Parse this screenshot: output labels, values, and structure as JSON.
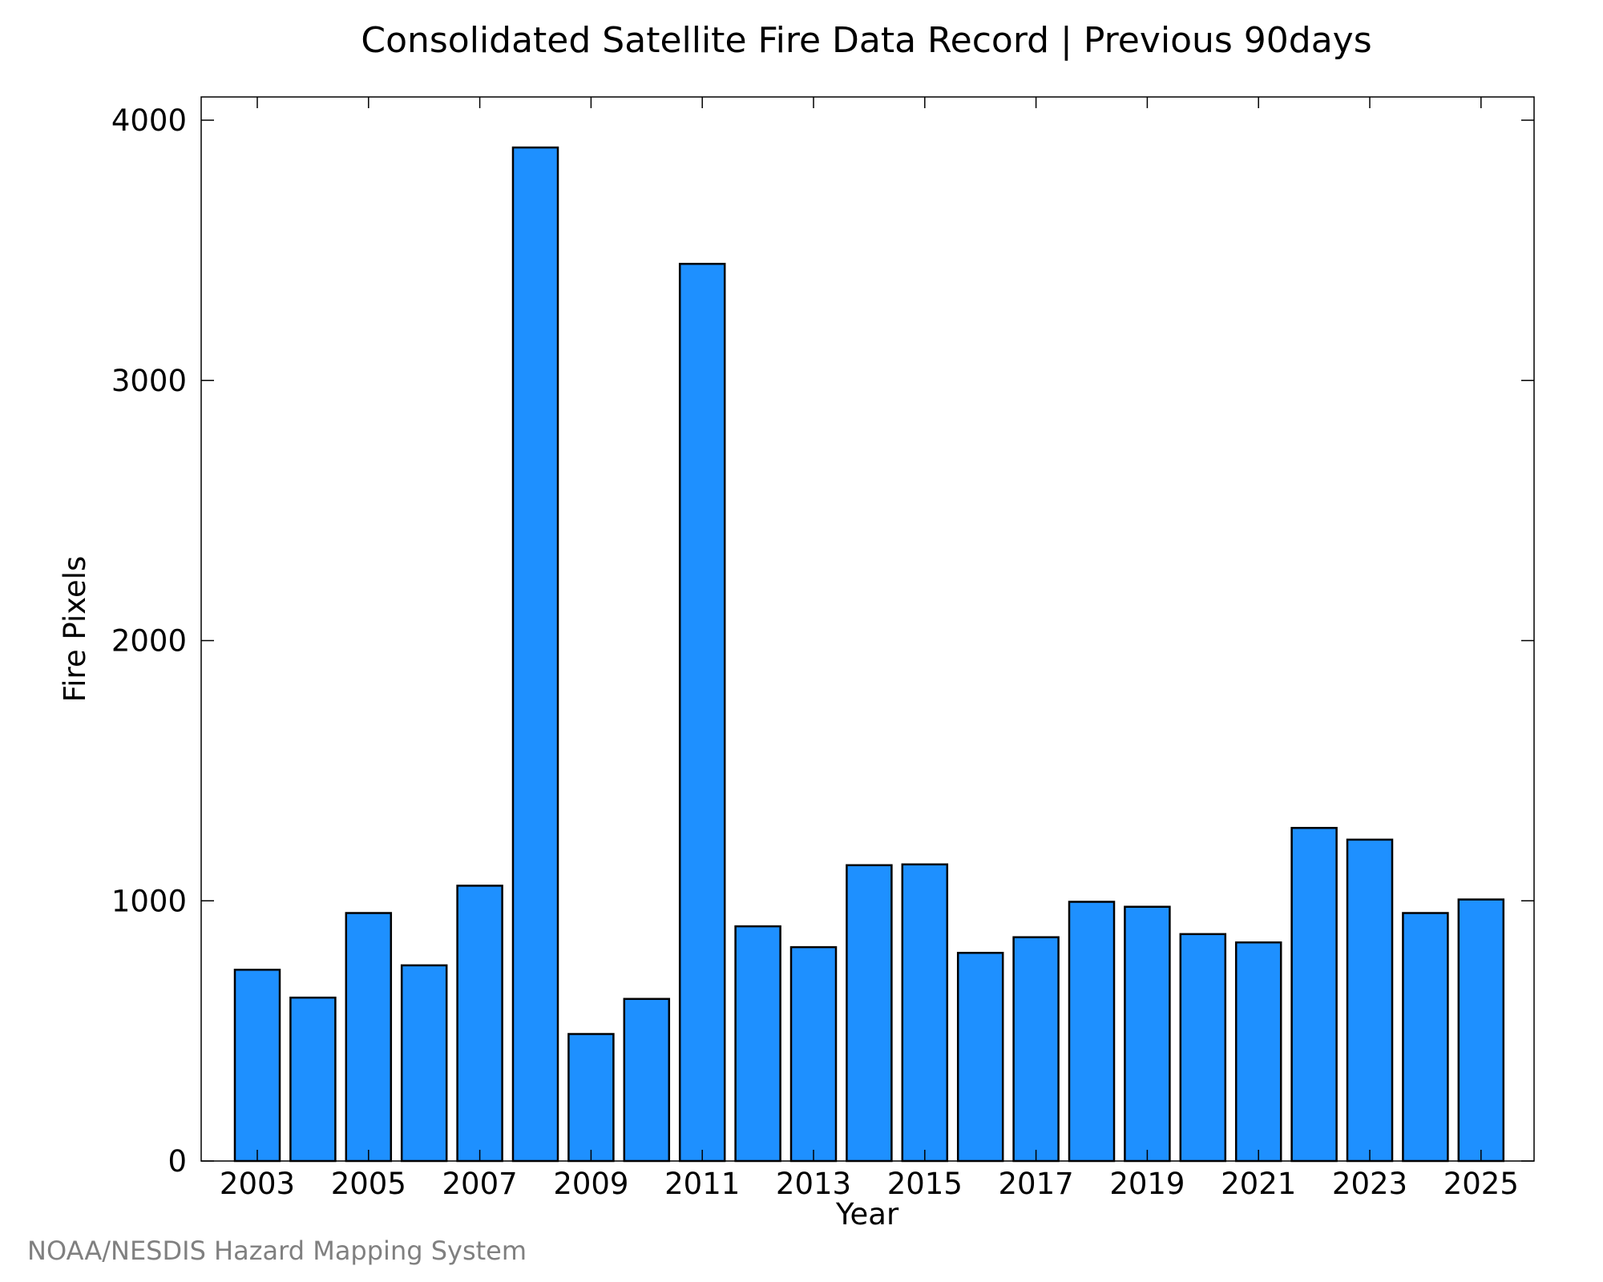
{
  "chart_data": {
    "type": "bar",
    "title": "Consolidated Satellite Fire Data Record | Previous 90days",
    "xlabel": "Year",
    "ylabel": "Fire Pixels",
    "categories": [
      "2003",
      "2004",
      "2005",
      "2006",
      "2007",
      "2008",
      "2009",
      "2010",
      "2011",
      "2012",
      "2013",
      "2014",
      "2015",
      "2016",
      "2017",
      "2018",
      "2019",
      "2020",
      "2021",
      "2022",
      "2023",
      "2024",
      "2025"
    ],
    "values": [
      735,
      628,
      953,
      752,
      1058,
      3895,
      488,
      623,
      3448,
      902,
      822,
      1137,
      1140,
      800,
      860,
      996,
      977,
      872,
      840,
      1280,
      1235,
      953,
      1005
    ],
    "x_tick_labels": [
      "2003",
      "2005",
      "2007",
      "2009",
      "2011",
      "2013",
      "2015",
      "2017",
      "2019",
      "2021",
      "2023",
      "2025"
    ],
    "y_ticks": [
      0,
      1000,
      2000,
      3000,
      4000
    ],
    "ylim": [
      0,
      4090
    ],
    "grid": false,
    "legend": "none",
    "bar_color": "#1e90ff",
    "edge_color": "#000000"
  },
  "credit": "NOAA/NESDIS Hazard Mapping System"
}
